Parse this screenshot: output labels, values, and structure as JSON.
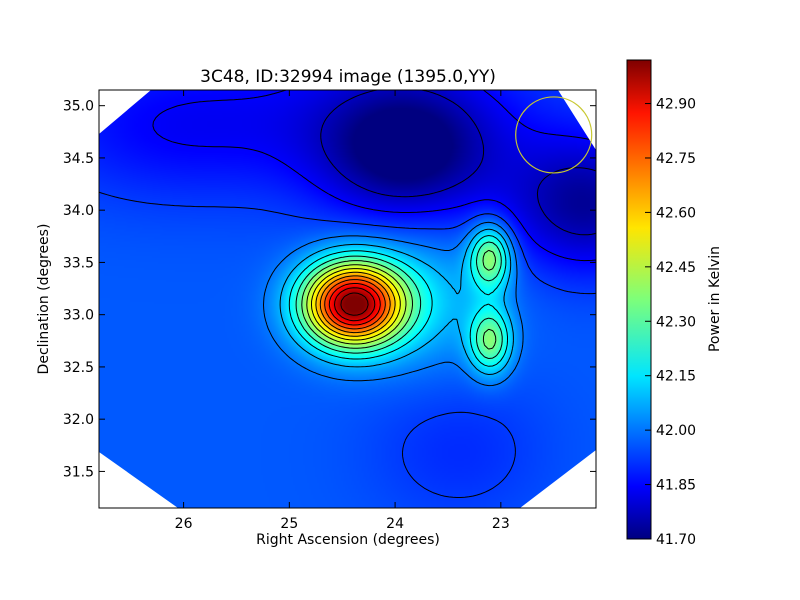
{
  "chart_data": {
    "type": "heatmap",
    "title": "3C48, ID:32994 image (1395.0,YY)",
    "xlabel": "Right Ascension (degrees)",
    "ylabel": "Declination (degrees)",
    "colorbar_label": "Power in Kelvin",
    "xlim": [
      26.8,
      22.1
    ],
    "ylim": [
      31.15,
      35.15
    ],
    "x_ticks": [
      "26",
      "25",
      "24",
      "23"
    ],
    "y_ticks": [
      "31.5",
      "32.0",
      "32.5",
      "33.0",
      "33.5",
      "34.0",
      "34.5",
      "35.0"
    ],
    "colorbar_range": [
      41.7,
      43.02
    ],
    "colorbar_ticks": [
      "41.70",
      "41.85",
      "42.00",
      "42.15",
      "42.30",
      "42.45",
      "42.60",
      "42.75",
      "42.90"
    ],
    "colormap": "jet",
    "background_level": 41.98,
    "sources": [
      {
        "ra": 24.4,
        "dec": 33.1,
        "peak_kelvin": 43.0
      },
      {
        "ra": 23.1,
        "dec": 33.55,
        "peak_kelvin": 42.38
      },
      {
        "ra": 23.1,
        "dec": 32.75,
        "peak_kelvin": 42.34
      }
    ],
    "minima": [
      {
        "ra": 23.9,
        "dec": 34.55,
        "min_kelvin": 41.72
      },
      {
        "ra": 22.2,
        "dec": 34.05,
        "min_kelvin": 41.74
      }
    ],
    "beam_circle": {
      "ra": 22.5,
      "dec": 34.72,
      "color": "#c8c832"
    },
    "contours": "on",
    "grid": "off",
    "legend": "none"
  }
}
